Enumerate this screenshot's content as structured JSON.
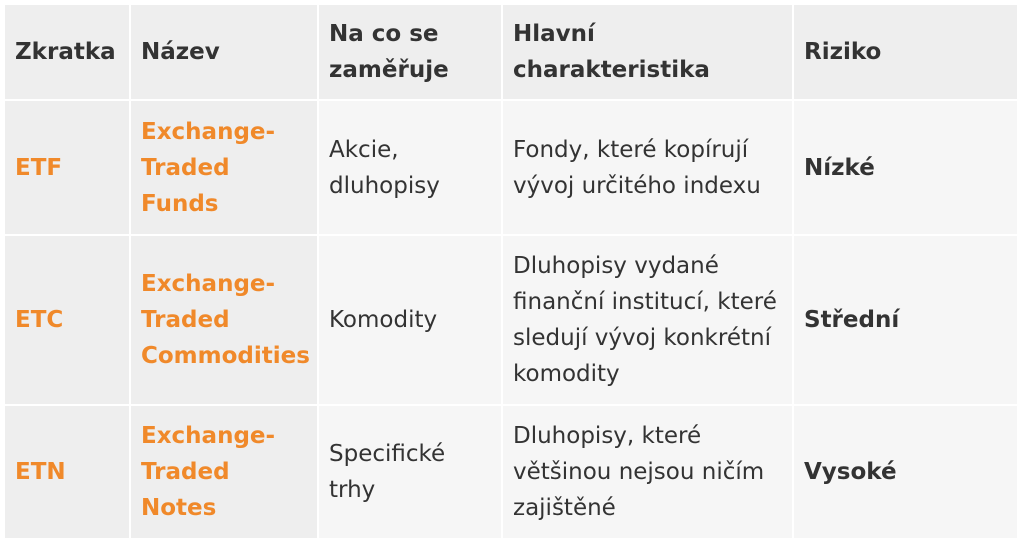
{
  "table": {
    "headers": [
      "Zkratka",
      "Název",
      "Na co se zaměřuje",
      "Hlavní charakteristika",
      "Riziko"
    ],
    "rows": [
      {
        "abbr": "ETF",
        "name": "Exchange-Traded Funds",
        "focus": "Akcie, dluhopisy",
        "feature": "Fondy, které kopírují vývoj určitého indexu",
        "risk": "Nízké"
      },
      {
        "abbr": "ETC",
        "name": "Exchange-Traded Commodities",
        "focus": "Komodity",
        "feature": "Dluhopisy vydané finanční institucí, které sledují vývoj konkrétní komodity",
        "risk": "Střední"
      },
      {
        "abbr": "ETN",
        "name": "Exchange-Traded Notes",
        "focus": "Specifické trhy",
        "feature": "Dluhopisy, které většinou nejsou ničím zajištěné",
        "risk": "Vysoké"
      }
    ]
  },
  "colors": {
    "accent": "#f0892a",
    "header_bg": "#eeeeee",
    "cell_bg": "#f6f6f6",
    "text": "#333333"
  }
}
